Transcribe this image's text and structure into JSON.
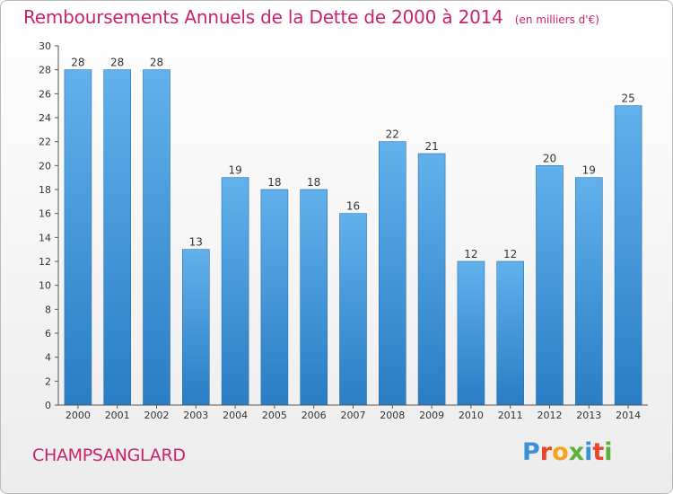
{
  "chart_data": {
    "type": "bar",
    "title": "Remboursements Annuels de la Dette de 2000 à 2014",
    "subtitle": "(en milliers d'€)",
    "categories": [
      "2000",
      "2001",
      "2002",
      "2003",
      "2004",
      "2005",
      "2006",
      "2007",
      "2008",
      "2009",
      "2010",
      "2011",
      "2012",
      "2013",
      "2014"
    ],
    "values": [
      28,
      28,
      28,
      13,
      19,
      18,
      18,
      16,
      22,
      21,
      12,
      12,
      20,
      19,
      25
    ],
    "value_labels": [
      "28",
      "28",
      "28",
      "13",
      "19",
      "18",
      "18",
      "16",
      "22",
      "21",
      "12",
      "12",
      "20",
      "19",
      "25"
    ],
    "ylim": [
      0,
      30
    ],
    "yticks": [
      "0",
      "2",
      "4",
      "6",
      "8",
      "10",
      "12",
      "14",
      "16",
      "18",
      "20",
      "22",
      "24",
      "26",
      "28",
      "30"
    ],
    "xlabel": "",
    "ylabel": "",
    "grid": false,
    "legend": "none",
    "bar_color": "#4a9be0"
  },
  "commune": "CHAMPSANGLARD",
  "logo": {
    "text": "Proxiti",
    "letter_colors": [
      "#3d8fd6",
      "#e8452c",
      "#f2a51c",
      "#5db13b",
      "#3d8fd6",
      "#e8452c",
      "#5db13b"
    ]
  },
  "colors": {
    "accent": "#c8246c"
  }
}
